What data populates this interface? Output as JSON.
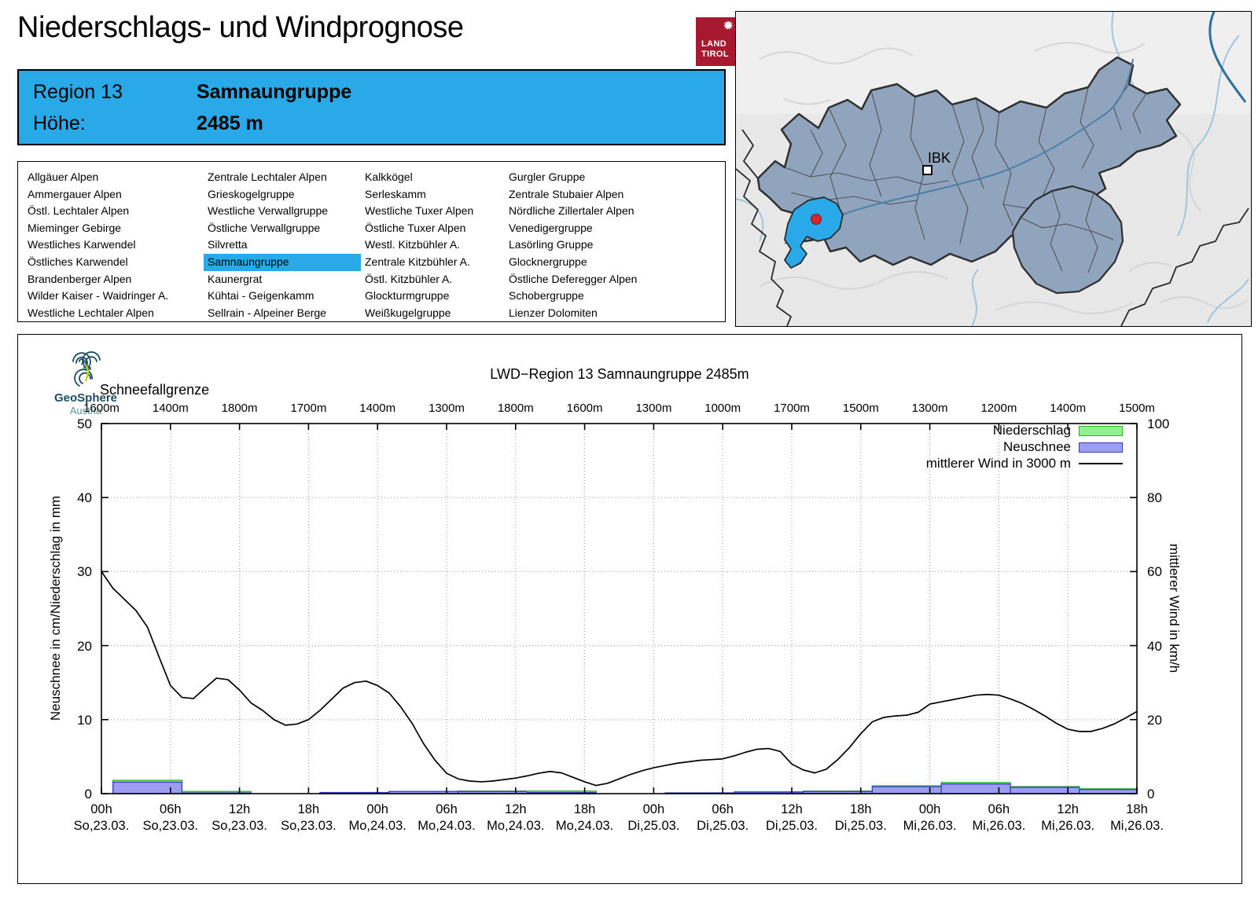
{
  "header": {
    "title": "Niederschlags- und Windprognose",
    "logo": {
      "line1": "LAND",
      "line2": "TIROL",
      "color": "#a6192e"
    }
  },
  "region_box": {
    "region_label": "Region 13",
    "region_name": "Samnaungruppe",
    "altitude_label": "Höhe:",
    "altitude_value": "2485 m",
    "bg": "#29a9e8"
  },
  "region_list": {
    "selected": "Samnaungruppe",
    "highlight": "#29a9e8",
    "columns": [
      [
        "Allgäuer Alpen",
        "Ammergauer Alpen",
        "Östl. Lechtaler Alpen",
        "Mieminger Gebirge",
        "Westliches Karwendel",
        "Östliches Karwendel",
        "Brandenberger Alpen",
        "Wilder Kaiser - Waidringer A.",
        "Westliche Lechtaler Alpen"
      ],
      [
        "Zentrale Lechtaler Alpen",
        "Grieskogelgruppe",
        "Westliche Verwallgruppe",
        "Östliche Verwallgruppe",
        "Silvretta",
        "Samnaungruppe",
        "Kaunergrat",
        "Kühtai - Geigenkamm",
        "Sellrain - Alpeiner Berge"
      ],
      [
        "Kalkkögel",
        "Serleskamm",
        "Westliche Tuxer Alpen",
        "Östliche Tuxer Alpen",
        "Westl. Kitzbühler A.",
        "Zentrale Kitzbühler A.",
        "Östl. Kitzbühler A.",
        "Glockturmgruppe",
        "Weißkugelgruppe"
      ],
      [
        "Gurgler Gruppe",
        "Zentrale Stubaier Alpen",
        "Nördliche Zillertaler Alpen",
        "Venedigergruppe",
        "Lasörling Gruppe",
        "Glocknergruppe",
        "Östliche Deferegger Alpen",
        "Schobergruppe",
        "Lienzer Dolomiten"
      ]
    ]
  },
  "map": {
    "marker_label": "IBK",
    "region_fill": "#90a5bd",
    "selected_fill": "#29a9e8",
    "marker_dot": "#d8262c"
  },
  "source_logo": {
    "line1": "GeoSphere",
    "line2": "Austria"
  },
  "chart_data": {
    "type": "line+bar",
    "title": "LWD−Region 13 Samnaungruppe 2485m",
    "snowline": {
      "label": "Schneefallgrenze",
      "values": [
        "1600m",
        "1400m",
        "1800m",
        "1700m",
        "1400m",
        "1300m",
        "1800m",
        "1600m",
        "1300m",
        "1000m",
        "1700m",
        "1500m",
        "1300m",
        "1200m",
        "1400m",
        "1500m"
      ]
    },
    "x_ticks": [
      {
        "hour": "00h",
        "day": "So,23.03."
      },
      {
        "hour": "06h",
        "day": "So,23.03."
      },
      {
        "hour": "12h",
        "day": "So,23.03."
      },
      {
        "hour": "18h",
        "day": "So,23.03."
      },
      {
        "hour": "00h",
        "day": "Mo,24.03."
      },
      {
        "hour": "06h",
        "day": "Mo,24.03."
      },
      {
        "hour": "12h",
        "day": "Mo,24.03."
      },
      {
        "hour": "18h",
        "day": "Mo,24.03."
      },
      {
        "hour": "00h",
        "day": "Di,25.03."
      },
      {
        "hour": "06h",
        "day": "Di,25.03."
      },
      {
        "hour": "12h",
        "day": "Di,25.03."
      },
      {
        "hour": "18h",
        "day": "Di,25.03."
      },
      {
        "hour": "00h",
        "day": "Mi,26.03."
      },
      {
        "hour": "06h",
        "day": "Mi,26.03."
      },
      {
        "hour": "12h",
        "day": "Mi,26.03."
      },
      {
        "hour": "18h",
        "day": "Mi,26.03."
      }
    ],
    "hours_total": 90,
    "left_axis": {
      "label": "Neuschnee in cm/Niederschlag in mm",
      "ticks": [
        0,
        10,
        20,
        30,
        40,
        50
      ],
      "max": 50
    },
    "right_axis": {
      "label": "mittlerer Wind in km/h",
      "ticks": [
        0,
        20,
        40,
        60,
        80,
        100
      ],
      "max": 100
    },
    "legend": [
      {
        "label": "Niederschlag",
        "type": "box",
        "fill": "#8ff28f",
        "stroke": "#27b427"
      },
      {
        "label": "Neuschnee",
        "type": "box",
        "fill": "#9c9cf0",
        "stroke": "#3c3ccc"
      },
      {
        "label": "mittlerer Wind in 3000 m",
        "type": "line",
        "stroke": "#000000"
      }
    ],
    "wind_kmh": {
      "name": "mittlerer Wind in 3000 m",
      "start_hour": 0,
      "step_hours": 1,
      "values": [
        60,
        55.5,
        52.5,
        49.5,
        45,
        37,
        29.2,
        26,
        25.7,
        28.5,
        31.2,
        30.8,
        28,
        24.5,
        22.5,
        20,
        18.5,
        18.8,
        20,
        22.5,
        25.5,
        28.5,
        30,
        30.4,
        29.2,
        27.2,
        23.5,
        19,
        13.5,
        9,
        5.5,
        4,
        3.4,
        3.2,
        3.4,
        3.8,
        4.2,
        4.8,
        5.5,
        6,
        5.6,
        4.4,
        3.2,
        2.2,
        2.8,
        4,
        5.2,
        6.2,
        7,
        7.6,
        8.2,
        8.6,
        9,
        9.2,
        9.4,
        10.2,
        11.2,
        12,
        12.2,
        11.4,
        8,
        6.4,
        5.6,
        6.6,
        9.2,
        12.4,
        16.2,
        19.4,
        20.6,
        21,
        21.2,
        22,
        24.2,
        24.8,
        25.4,
        26,
        26.6,
        26.8,
        26.6,
        25.6,
        24.4,
        22.8,
        21,
        19,
        17.4,
        16.8,
        16.8,
        17.6,
        18.8,
        20.4,
        22.2
      ]
    },
    "bars": {
      "niederschlag_unit": "mm",
      "neuschnee_unit": "cm",
      "segments": [
        {
          "from": 1,
          "to": 7,
          "niederschlag": 1.8,
          "neuschnee": 1.55
        },
        {
          "from": 7,
          "to": 13,
          "niederschlag": 0.3,
          "neuschnee": 0.1
        },
        {
          "from": 13,
          "to": 19,
          "niederschlag": 0,
          "neuschnee": 0
        },
        {
          "from": 19,
          "to": 25,
          "niederschlag": 0.15,
          "neuschnee": 0.15
        },
        {
          "from": 25,
          "to": 31,
          "niederschlag": 0.3,
          "neuschnee": 0.3
        },
        {
          "from": 31,
          "to": 37,
          "niederschlag": 0.35,
          "neuschnee": 0.3
        },
        {
          "from": 37,
          "to": 43,
          "niederschlag": 0.35,
          "neuschnee": 0.15
        },
        {
          "from": 43,
          "to": 49,
          "niederschlag": 0,
          "neuschnee": 0
        },
        {
          "from": 49,
          "to": 55,
          "niederschlag": 0.1,
          "neuschnee": 0.1
        },
        {
          "from": 55,
          "to": 61,
          "niederschlag": 0.25,
          "neuschnee": 0.2
        },
        {
          "from": 61,
          "to": 67,
          "niederschlag": 0.35,
          "neuschnee": 0.3
        },
        {
          "from": 67,
          "to": 73,
          "niederschlag": 1.05,
          "neuschnee": 0.95
        },
        {
          "from": 73,
          "to": 79,
          "niederschlag": 1.5,
          "neuschnee": 1.3
        },
        {
          "from": 79,
          "to": 85,
          "niederschlag": 0.95,
          "neuschnee": 0.85
        },
        {
          "from": 85,
          "to": 90,
          "niederschlag": 0.65,
          "neuschnee": 0.55
        }
      ]
    }
  }
}
